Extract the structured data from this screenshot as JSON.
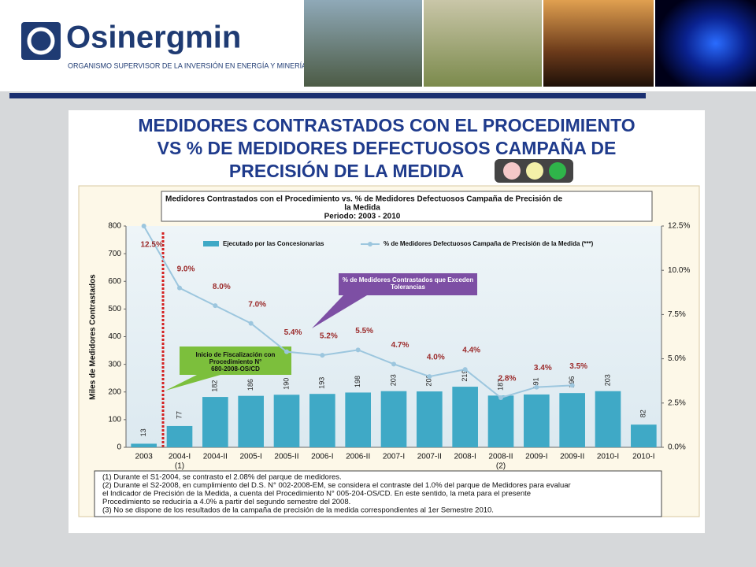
{
  "header": {
    "logo": "Osinergmin",
    "subtitle": "ORGANISMO SUPERVISOR DE LA INVERSIÓN EN ENERGÍA Y MINERÍA"
  },
  "chart_data": {
    "type": "bar-line",
    "title_lines": [
      "MEDIDORES CONTRASTADOS CON EL PROCEDIMIENTO",
      "VS % DE MEDIDORES DEFECTUOSOS CAMPAÑA DE",
      "PRECISIÓN DE LA MEDIDA"
    ],
    "chart_title_lines": [
      "Medidores Contrastados con el Procedimiento vs.  % de Medidores Defectuosos Campaña de Precisión de",
      "la Medida",
      "Periodo: 2003 - 2010"
    ],
    "y_label": "Miles de Medidores Contrastados",
    "categories": [
      "2003",
      "2004-I",
      "2004-II",
      "2005-I",
      "2005-II",
      "2006-I",
      "2006-II",
      "2007-I",
      "2007-II",
      "2008-I",
      "2008-II",
      "2009-I",
      "2009-II",
      "2010-I",
      "2010-I"
    ],
    "category_notes": [
      null,
      "(1)",
      null,
      null,
      null,
      null,
      null,
      null,
      null,
      null,
      "(2)",
      null,
      null,
      null,
      null
    ],
    "series": [
      {
        "name": "Ejecutado por las Concesionarias",
        "color": "#3fa9c6",
        "values": [
          13,
          77,
          182,
          186,
          190,
          193,
          198,
          203,
          202,
          219,
          187,
          191,
          196,
          203,
          82
        ]
      },
      {
        "name": "% de Medidores Defectuosos Campaña de Precisión de la Medida (***)",
        "color": "#9cc6de",
        "axis": "y2",
        "values": [
          12.5,
          9.0,
          8.0,
          7.0,
          5.4,
          5.2,
          5.5,
          4.7,
          4.0,
          4.4,
          2.8,
          3.4,
          3.5,
          null,
          null
        ],
        "value_labels": [
          "12.5%",
          "9.0%",
          "8.0%",
          "7.0%",
          "5.4%",
          "5.2%",
          "5.5%",
          "4.7%",
          "4.0%",
          "4.4%",
          "2.8%",
          "3.4%",
          "3.5%",
          null,
          null
        ]
      }
    ],
    "ylim": [
      0,
      800
    ],
    "yticks": [
      0,
      100,
      200,
      300,
      400,
      500,
      600,
      700,
      800
    ],
    "y2lim": [
      0,
      12.5
    ],
    "y2ticks": [
      {
        "value": 0,
        "label": "0.0%"
      },
      {
        "value": 2.5,
        "label": "2.5%"
      },
      {
        "value": 5,
        "label": "5.0%"
      },
      {
        "value": 7.5,
        "label": "7.5%"
      },
      {
        "value": 10,
        "label": "10.0%"
      },
      {
        "value": 12.5,
        "label": "12.5%"
      }
    ],
    "annotations": [
      "% de Medidores Contrastados que Exceden Tolerancias",
      "Inicio de Fiscalización con Procedimiento N° 680-2008-OS/CD"
    ],
    "notes": [
      "(1) Durante el S1-2004,  se contrasto el 2.08% del parque de medidores.",
      "(2) Durante el S2-2008,  en cumplimiento del D.S. N° 002-2008-EM,  se considera el contraste del 1.0% del parque de Medidores para evaluar",
      "el Indicador de Precisión de la Medida, a cuenta del Procedimiento N° 005-204-OS/CD.  En este sentido, la meta para el presente",
      "Procedimiento se reduciría a 4.0% a partir del segundo semestre del 2008.",
      "(3) No se dispone de los resultados de la campaña de precisión de la medida correspondientes al 1er Semestre 2010."
    ]
  }
}
